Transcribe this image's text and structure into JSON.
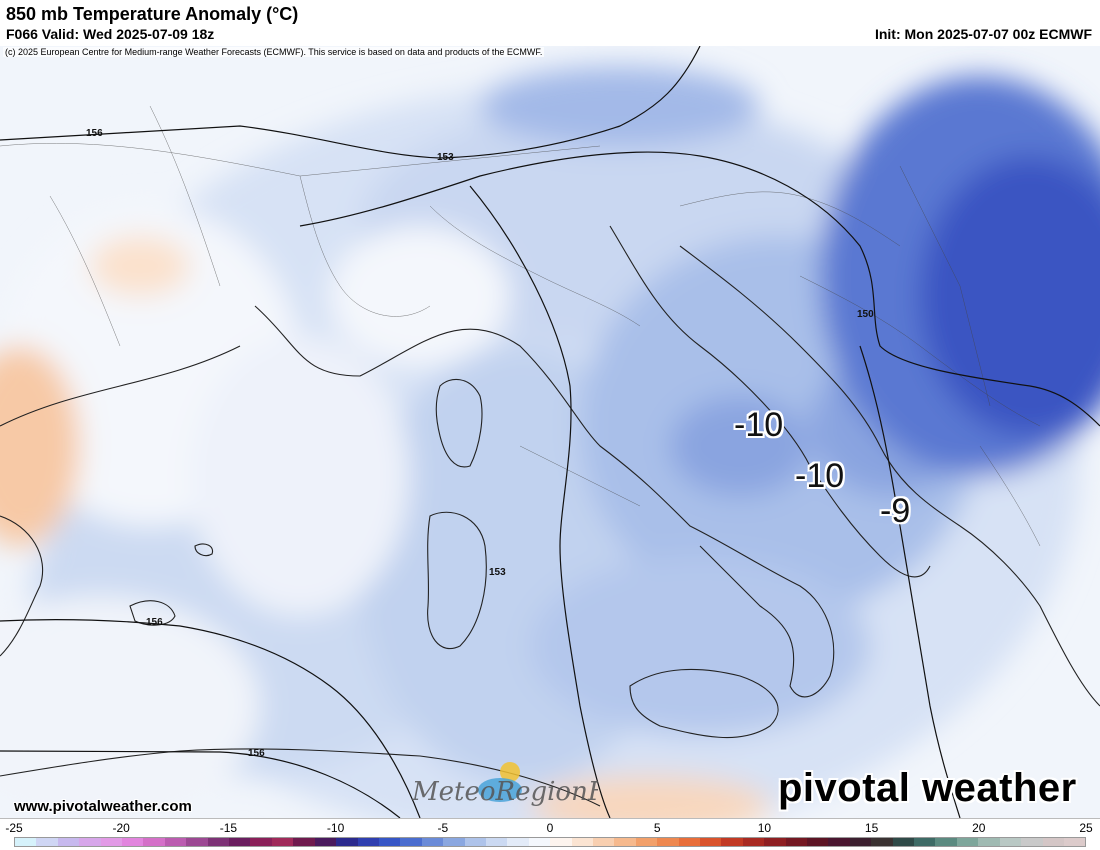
{
  "header": {
    "title": "850 mb Temperature Anomaly (°C)",
    "valid": "F066 Valid: Wed 2025-07-09 18z",
    "init": "Init: Mon 2025-07-07 00z ECMWF",
    "copyright": "(c) 2025 European Centre for Medium-range Weather Forecasts (ECMWF). This service is based on data and products of the ECMWF."
  },
  "map": {
    "anomaly_labels": [
      "-10",
      "-10",
      "-9"
    ],
    "height_labels": [
      "156",
      "153",
      "150",
      "153",
      "156",
      "156"
    ]
  },
  "footer": {
    "site_url": "www.pivotalweather.com",
    "brand": "pivotal weather"
  },
  "watermark_text": "MeteoRegionFoto",
  "colorbar": {
    "ticks": [
      "-25",
      "-20",
      "-15",
      "-10",
      "-5",
      "0",
      "5",
      "10",
      "15",
      "20",
      "25"
    ],
    "colors": [
      "#d6f2fb",
      "#cfd6f4",
      "#c7b9ee",
      "#d7a6ea",
      "#e29ae6",
      "#e285de",
      "#d470c8",
      "#bb5cb0",
      "#9c4893",
      "#7d3276",
      "#6a1e5f",
      "#8a2059",
      "#a02a5a",
      "#6f1a4e",
      "#4a1a5e",
      "#2b2a8e",
      "#2f3fb0",
      "#3656c6",
      "#4a6dcf",
      "#6a8bd8",
      "#8aa7e0",
      "#aec3ea",
      "#cbd9f2",
      "#e3ebf8",
      "#f4f7fc",
      "#fdf4ee",
      "#fbe4d2",
      "#f8cfb0",
      "#f6b98d",
      "#f2a06a",
      "#ee8850",
      "#e86e3a",
      "#d9532c",
      "#c23a24",
      "#a82a22",
      "#8e1f22",
      "#741822",
      "#5c1424",
      "#4a1630",
      "#3c2030",
      "#3a3232",
      "#2f4a48",
      "#3e6b66",
      "#5b8a80",
      "#7ea69b",
      "#9fbab2",
      "#b9c8c4",
      "#c9c9c9",
      "#d4c6c6",
      "#dccbcb"
    ]
  }
}
